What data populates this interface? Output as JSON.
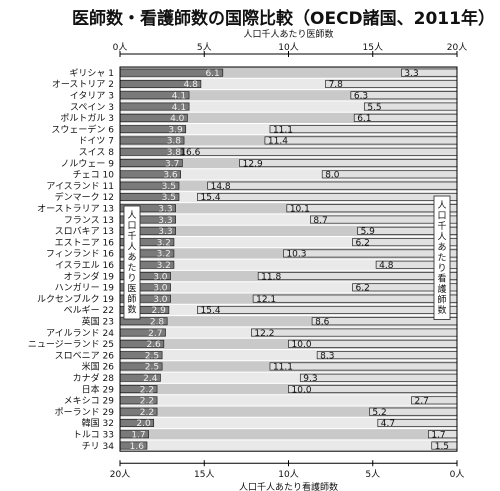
{
  "title": "医師数・看護師数の国際比較（OECD諸国、2011年）",
  "chart_data": {
    "type": "bar",
    "top_axis": {
      "label": "人口千人あたり医師数",
      "range": [
        0,
        20
      ],
      "ticks": [
        "0人",
        "5人",
        "10人",
        "15人",
        "20人"
      ]
    },
    "bottom_axis": {
      "label": "人口千人あたり看護師数",
      "range": [
        20,
        0
      ],
      "ticks": [
        "20人",
        "15人",
        "10人",
        "5人",
        "0人"
      ]
    },
    "inner_label_left": "人口千人あたり医師数",
    "inner_label_right": "人口千人あたり看護師数",
    "countries": [
      "ギリシャ 1",
      "オーストリア 2",
      "イタリア 3",
      "スペイン 3",
      "ポルトガル 3",
      "スウェーデン 6",
      "ドイツ 7",
      "スイス 8",
      "ノルウェー 9",
      "チェコ 10",
      "アイスランド 11",
      "デンマーク 12",
      "オーストラリア 13",
      "フランス 13",
      "スロバキア 13",
      "エストニア 16",
      "フィンランド 16",
      "イスラエル 16",
      "オランダ 19",
      "ハンガリー 19",
      "ルクセンブルク 19",
      "ベルギー 22",
      "英国 23",
      "アイルランド 24",
      "ニュージーランド 25",
      "スロベニア 26",
      "米国 26",
      "カナダ 28",
      "日本 29",
      "メキシコ 29",
      "ポーランド 29",
      "韓国 32",
      "トルコ 33",
      "チリ 34"
    ],
    "series": [
      {
        "name": "人口千人あたり医師数",
        "values": [
          6.1,
          4.8,
          4.1,
          4.1,
          4.0,
          3.9,
          3.8,
          3.8,
          3.7,
          3.6,
          3.5,
          3.5,
          3.3,
          3.3,
          3.3,
          3.2,
          3.2,
          3.2,
          3.0,
          3.0,
          3.0,
          2.9,
          2.8,
          2.7,
          2.6,
          2.5,
          2.5,
          2.4,
          2.2,
          2.2,
          2.2,
          2.0,
          1.7,
          1.6
        ]
      },
      {
        "name": "人口千人あたり看護師数",
        "values": [
          3.3,
          7.8,
          6.3,
          5.5,
          6.1,
          11.1,
          11.4,
          16.6,
          12.9,
          8.0,
          14.8,
          15.4,
          10.1,
          8.7,
          5.9,
          6.2,
          10.3,
          4.8,
          11.8,
          6.2,
          12.1,
          15.4,
          8.6,
          12.2,
          10.0,
          8.3,
          11.1,
          9.3,
          10.0,
          2.7,
          5.2,
          4.7,
          1.7,
          1.5
        ]
      }
    ]
  },
  "colors": {
    "doctor_bar": "#7a7a7a",
    "nurse_bar": "#e0e0e0",
    "row_alt": "#c9c9c9",
    "row_base": "#e9e9e9",
    "divider": "#ffffff",
    "axis": "#000000"
  }
}
